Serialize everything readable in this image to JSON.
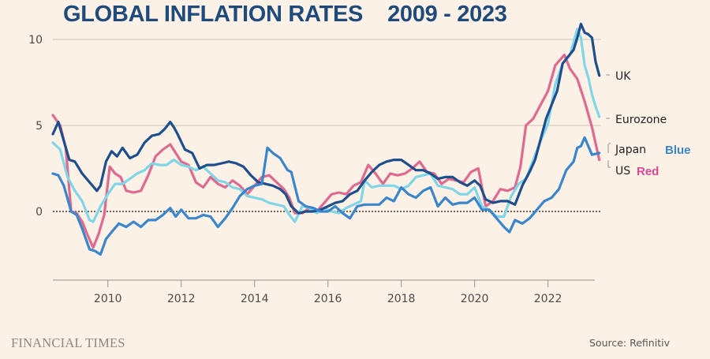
{
  "chart_data": {
    "type": "line",
    "title": "GLOBAL INFLATION RATES",
    "title_years": "2009 - 2023",
    "xlabel": "",
    "ylabel": "",
    "xlim": [
      2008.5,
      2023.45
    ],
    "ylim": [
      -3.5,
      10
    ],
    "x_ticks": [
      "2010",
      "2012",
      "2014",
      "2016",
      "2018",
      "2020",
      "2022"
    ],
    "x_tick_values": [
      2010,
      2012,
      2014,
      2016,
      2018,
      2020,
      2022
    ],
    "y_ticks": [
      "0",
      "5",
      "10"
    ],
    "y_tick_values": [
      0,
      5,
      10
    ],
    "grid": "horizontal",
    "zero_line": "dotted",
    "legend": "right-end labels",
    "series": [
      {
        "name": "UK",
        "color": "#1f4e8c",
        "x": [
          2008.5,
          2008.65,
          2008.8,
          2008.95,
          2009.1,
          2009.3,
          2009.5,
          2009.7,
          2009.8,
          2009.95,
          2010.1,
          2010.25,
          2010.4,
          2010.6,
          2010.8,
          2011.0,
          2011.2,
          2011.4,
          2011.55,
          2011.7,
          2011.8,
          2011.9,
          2012.1,
          2012.3,
          2012.5,
          2012.7,
          2012.9,
          2013.1,
          2013.3,
          2013.5,
          2013.7,
          2013.9,
          2014.1,
          2014.3,
          2014.5,
          2014.7,
          2014.85,
          2015.0,
          2015.2,
          2015.4,
          2015.6,
          2015.8,
          2016.0,
          2016.2,
          2016.4,
          2016.6,
          2016.8,
          2017.0,
          2017.2,
          2017.4,
          2017.6,
          2017.8,
          2018.0,
          2018.2,
          2018.4,
          2018.6,
          2018.8,
          2019.0,
          2019.2,
          2019.4,
          2019.6,
          2019.8,
          2020.0,
          2020.15,
          2020.3,
          2020.5,
          2020.7,
          2020.9,
          2021.1,
          2021.3,
          2021.5,
          2021.65,
          2021.8,
          2021.95,
          2022.1,
          2022.25,
          2022.4,
          2022.55,
          2022.7,
          2022.8,
          2022.9,
          2023.0,
          2023.1,
          2023.2,
          2023.3,
          2023.4
        ],
        "values": [
          4.5,
          5.2,
          4.1,
          3.0,
          2.9,
          2.2,
          1.7,
          1.2,
          1.5,
          2.9,
          3.5,
          3.2,
          3.7,
          3.1,
          3.3,
          4.0,
          4.4,
          4.5,
          4.8,
          5.2,
          4.9,
          4.5,
          3.6,
          3.4,
          2.5,
          2.7,
          2.7,
          2.8,
          2.9,
          2.8,
          2.6,
          2.1,
          1.7,
          1.6,
          1.5,
          1.3,
          1.0,
          0.3,
          -0.1,
          0.0,
          0.0,
          0.1,
          0.3,
          0.5,
          0.6,
          1.0,
          1.2,
          1.8,
          2.3,
          2.7,
          2.9,
          3.0,
          3.0,
          2.7,
          2.4,
          2.4,
          2.2,
          1.9,
          2.0,
          2.0,
          1.7,
          1.5,
          1.8,
          1.5,
          0.7,
          0.5,
          0.6,
          0.6,
          0.4,
          1.5,
          2.3,
          3.0,
          4.2,
          5.4,
          6.2,
          7.0,
          8.6,
          9.0,
          9.4,
          10.1,
          10.9,
          10.4,
          10.3,
          10.1,
          8.7,
          7.9
        ]
      },
      {
        "name": "Eurozone",
        "color": "#7fd6e6",
        "x": [
          2008.5,
          2008.7,
          2008.9,
          2009.1,
          2009.3,
          2009.5,
          2009.6,
          2009.8,
          2010.0,
          2010.2,
          2010.4,
          2010.6,
          2010.8,
          2011.0,
          2011.2,
          2011.4,
          2011.6,
          2011.8,
          2012.0,
          2012.2,
          2012.4,
          2012.6,
          2012.8,
          2013.0,
          2013.2,
          2013.4,
          2013.6,
          2013.8,
          2014.0,
          2014.2,
          2014.4,
          2014.6,
          2014.8,
          2014.95,
          2015.1,
          2015.3,
          2015.5,
          2015.7,
          2015.9,
          2016.1,
          2016.3,
          2016.5,
          2016.7,
          2016.9,
          2017.0,
          2017.2,
          2017.4,
          2017.6,
          2017.8,
          2018.0,
          2018.2,
          2018.4,
          2018.6,
          2018.8,
          2019.0,
          2019.2,
          2019.4,
          2019.6,
          2019.8,
          2020.0,
          2020.2,
          2020.4,
          2020.6,
          2020.8,
          2021.0,
          2021.2,
          2021.4,
          2021.6,
          2021.8,
          2022.0,
          2022.2,
          2022.4,
          2022.6,
          2022.8,
          2022.9,
          2023.0,
          2023.1,
          2023.2,
          2023.3,
          2023.4
        ],
        "values": [
          4.0,
          3.6,
          2.0,
          1.2,
          0.6,
          -0.5,
          -0.6,
          0.3,
          1.0,
          1.6,
          1.6,
          1.9,
          2.2,
          2.4,
          2.8,
          2.7,
          2.7,
          3.0,
          2.7,
          2.6,
          2.4,
          2.6,
          2.2,
          1.8,
          1.7,
          1.4,
          1.3,
          0.9,
          0.8,
          0.7,
          0.5,
          0.4,
          0.3,
          -0.2,
          -0.6,
          0.3,
          0.2,
          -0.1,
          0.2,
          0.0,
          -0.1,
          0.2,
          0.4,
          0.6,
          1.8,
          1.4,
          1.5,
          1.5,
          1.5,
          1.3,
          1.5,
          2.0,
          2.1,
          2.2,
          1.5,
          1.4,
          1.3,
          1.0,
          1.0,
          1.4,
          0.3,
          0.1,
          -0.3,
          -0.3,
          0.9,
          1.6,
          1.9,
          3.0,
          4.1,
          5.1,
          7.4,
          8.6,
          9.1,
          10.6,
          10.1,
          8.5,
          7.8,
          6.8,
          6.1,
          5.5
        ]
      },
      {
        "name": "Japan",
        "color": "#3a86cc",
        "x": [
          2008.5,
          2008.65,
          2008.8,
          2009.0,
          2009.15,
          2009.3,
          2009.5,
          2009.65,
          2009.8,
          2009.95,
          2010.1,
          2010.3,
          2010.5,
          2010.7,
          2010.9,
          2011.1,
          2011.3,
          2011.5,
          2011.7,
          2011.85,
          2012.0,
          2012.2,
          2012.4,
          2012.6,
          2012.8,
          2013.0,
          2013.2,
          2013.4,
          2013.6,
          2013.8,
          2014.0,
          2014.2,
          2014.35,
          2014.5,
          2014.7,
          2014.9,
          2015.0,
          2015.2,
          2015.4,
          2015.6,
          2015.8,
          2016.0,
          2016.2,
          2016.4,
          2016.6,
          2016.8,
          2017.0,
          2017.2,
          2017.4,
          2017.6,
          2017.8,
          2018.0,
          2018.2,
          2018.4,
          2018.6,
          2018.8,
          2019.0,
          2019.2,
          2019.4,
          2019.6,
          2019.8,
          2020.0,
          2020.2,
          2020.4,
          2020.6,
          2020.8,
          2020.95,
          2021.1,
          2021.3,
          2021.5,
          2021.7,
          2021.9,
          2022.1,
          2022.3,
          2022.5,
          2022.7,
          2022.8,
          2022.9,
          2023.0,
          2023.2,
          2023.4
        ],
        "values": [
          2.2,
          2.1,
          1.5,
          0.0,
          -0.2,
          -1.0,
          -2.2,
          -2.3,
          -2.5,
          -1.6,
          -1.2,
          -0.7,
          -0.9,
          -0.6,
          -0.9,
          -0.5,
          -0.5,
          -0.2,
          0.2,
          -0.3,
          0.1,
          -0.4,
          -0.4,
          -0.2,
          -0.3,
          -0.9,
          -0.4,
          0.2,
          0.9,
          1.3,
          1.5,
          1.6,
          3.7,
          3.4,
          3.1,
          2.4,
          2.3,
          0.6,
          0.3,
          0.2,
          0.0,
          0.0,
          0.3,
          -0.1,
          -0.4,
          0.3,
          0.4,
          0.4,
          0.4,
          0.8,
          0.6,
          1.4,
          1.0,
          0.8,
          1.2,
          1.4,
          0.3,
          0.8,
          0.4,
          0.5,
          0.5,
          0.8,
          0.1,
          0.1,
          -0.4,
          -0.9,
          -1.2,
          -0.5,
          -0.7,
          -0.4,
          0.1,
          0.6,
          0.8,
          1.3,
          2.4,
          2.9,
          3.7,
          3.8,
          4.3,
          3.3,
          3.4
        ]
      },
      {
        "name": "US",
        "color": "#e0698f",
        "x": [
          2008.5,
          2008.7,
          2008.85,
          2009.0,
          2009.15,
          2009.3,
          2009.45,
          2009.6,
          2009.75,
          2009.9,
          2010.05,
          2010.2,
          2010.35,
          2010.5,
          2010.7,
          2010.9,
          2011.1,
          2011.3,
          2011.5,
          2011.7,
          2011.85,
          2012.0,
          2012.2,
          2012.4,
          2012.6,
          2012.8,
          2013.0,
          2013.2,
          2013.4,
          2013.6,
          2013.8,
          2014.0,
          2014.2,
          2014.4,
          2014.6,
          2014.8,
          2014.95,
          2015.1,
          2015.3,
          2015.5,
          2015.7,
          2015.9,
          2016.1,
          2016.3,
          2016.5,
          2016.7,
          2016.9,
          2017.1,
          2017.3,
          2017.5,
          2017.7,
          2017.9,
          2018.1,
          2018.3,
          2018.5,
          2018.7,
          2018.9,
          2019.1,
          2019.3,
          2019.5,
          2019.7,
          2019.9,
          2020.1,
          2020.3,
          2020.5,
          2020.7,
          2020.9,
          2021.1,
          2021.25,
          2021.4,
          2021.6,
          2021.8,
          2022.0,
          2022.2,
          2022.45,
          2022.6,
          2022.8,
          2023.0,
          2023.2,
          2023.4
        ],
        "values": [
          5.6,
          5.0,
          3.7,
          0.0,
          -0.1,
          -0.6,
          -1.4,
          -2.1,
          -1.3,
          -0.2,
          2.6,
          2.2,
          2.0,
          1.2,
          1.1,
          1.2,
          2.1,
          3.2,
          3.6,
          3.9,
          3.4,
          2.9,
          2.7,
          1.7,
          1.4,
          2.0,
          1.6,
          1.4,
          1.8,
          1.5,
          1.0,
          1.5,
          2.0,
          2.1,
          1.7,
          1.3,
          0.8,
          -0.1,
          -0.1,
          0.2,
          0.0,
          0.5,
          1.0,
          1.1,
          1.0,
          1.5,
          1.7,
          2.7,
          2.2,
          1.6,
          2.2,
          2.1,
          2.2,
          2.5,
          2.9,
          2.3,
          2.2,
          1.6,
          1.9,
          1.8,
          1.7,
          2.3,
          2.5,
          0.3,
          0.6,
          1.3,
          1.2,
          1.4,
          2.6,
          5.0,
          5.4,
          6.2,
          7.0,
          8.5,
          9.1,
          8.3,
          7.7,
          6.4,
          4.9,
          3.0
        ]
      }
    ],
    "end_labels": [
      {
        "series": "UK",
        "text": "UK"
      },
      {
        "series": "Eurozone",
        "text": "Eurozone"
      },
      {
        "series": "Japan",
        "text": "Japan",
        "note": "Blue",
        "note_color": "#3a86cc"
      },
      {
        "series": "US",
        "text": "US",
        "note": "Red",
        "note_color": "#e0468f"
      }
    ]
  },
  "footer": {
    "brand": "FINANCIAL TIMES",
    "source": "Source: Refinitiv"
  }
}
